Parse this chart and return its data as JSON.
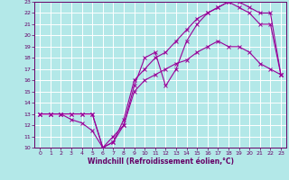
{
  "xlabel": "Windchill (Refroidissement éolien,°C)",
  "line_color": "#990099",
  "bg_color": "#b3e8e8",
  "grid_color": "#ffffff",
  "axes_color": "#660066",
  "xlim": [
    -0.5,
    23.5
  ],
  "ylim": [
    10,
    23
  ],
  "xticks": [
    0,
    1,
    2,
    3,
    4,
    5,
    6,
    7,
    8,
    9,
    10,
    11,
    12,
    13,
    14,
    15,
    16,
    17,
    18,
    19,
    20,
    21,
    22,
    23
  ],
  "yticks": [
    10,
    11,
    12,
    13,
    14,
    15,
    16,
    17,
    18,
    19,
    20,
    21,
    22,
    23
  ],
  "line1_x": [
    0,
    1,
    2,
    3,
    4,
    5,
    6,
    7,
    8,
    9,
    10,
    11,
    12,
    13,
    14,
    15,
    16,
    17,
    18,
    19,
    20,
    21,
    22,
    23
  ],
  "line1_y": [
    13,
    13,
    13,
    13,
    13,
    13,
    10,
    10.5,
    12,
    15,
    16,
    16.5,
    17,
    17.5,
    17.8,
    18.5,
    19,
    19.5,
    19,
    19,
    18.5,
    17.5,
    17,
    16.5
  ],
  "line2_x": [
    0,
    1,
    2,
    3,
    4,
    5,
    6,
    7,
    8,
    9,
    10,
    11,
    12,
    13,
    14,
    15,
    16,
    17,
    18,
    19,
    20,
    21,
    22,
    23
  ],
  "line2_y": [
    13,
    13,
    13,
    12.5,
    12.2,
    11.5,
    10,
    11,
    12,
    15.5,
    18,
    18.5,
    15.5,
    17,
    19.5,
    21,
    22,
    22.5,
    23,
    22.5,
    22,
    21,
    21,
    16.5
  ],
  "line3_x": [
    0,
    1,
    2,
    3,
    4,
    5,
    6,
    7,
    8,
    9,
    10,
    11,
    12,
    13,
    14,
    15,
    16,
    17,
    18,
    19,
    20,
    21,
    22,
    23
  ],
  "line3_y": [
    13,
    13,
    13,
    13,
    13,
    13,
    10,
    10.5,
    12.5,
    16,
    17,
    18,
    18.5,
    19.5,
    20.5,
    21.5,
    22,
    22.5,
    23,
    23,
    22.5,
    22,
    22,
    16.5
  ]
}
